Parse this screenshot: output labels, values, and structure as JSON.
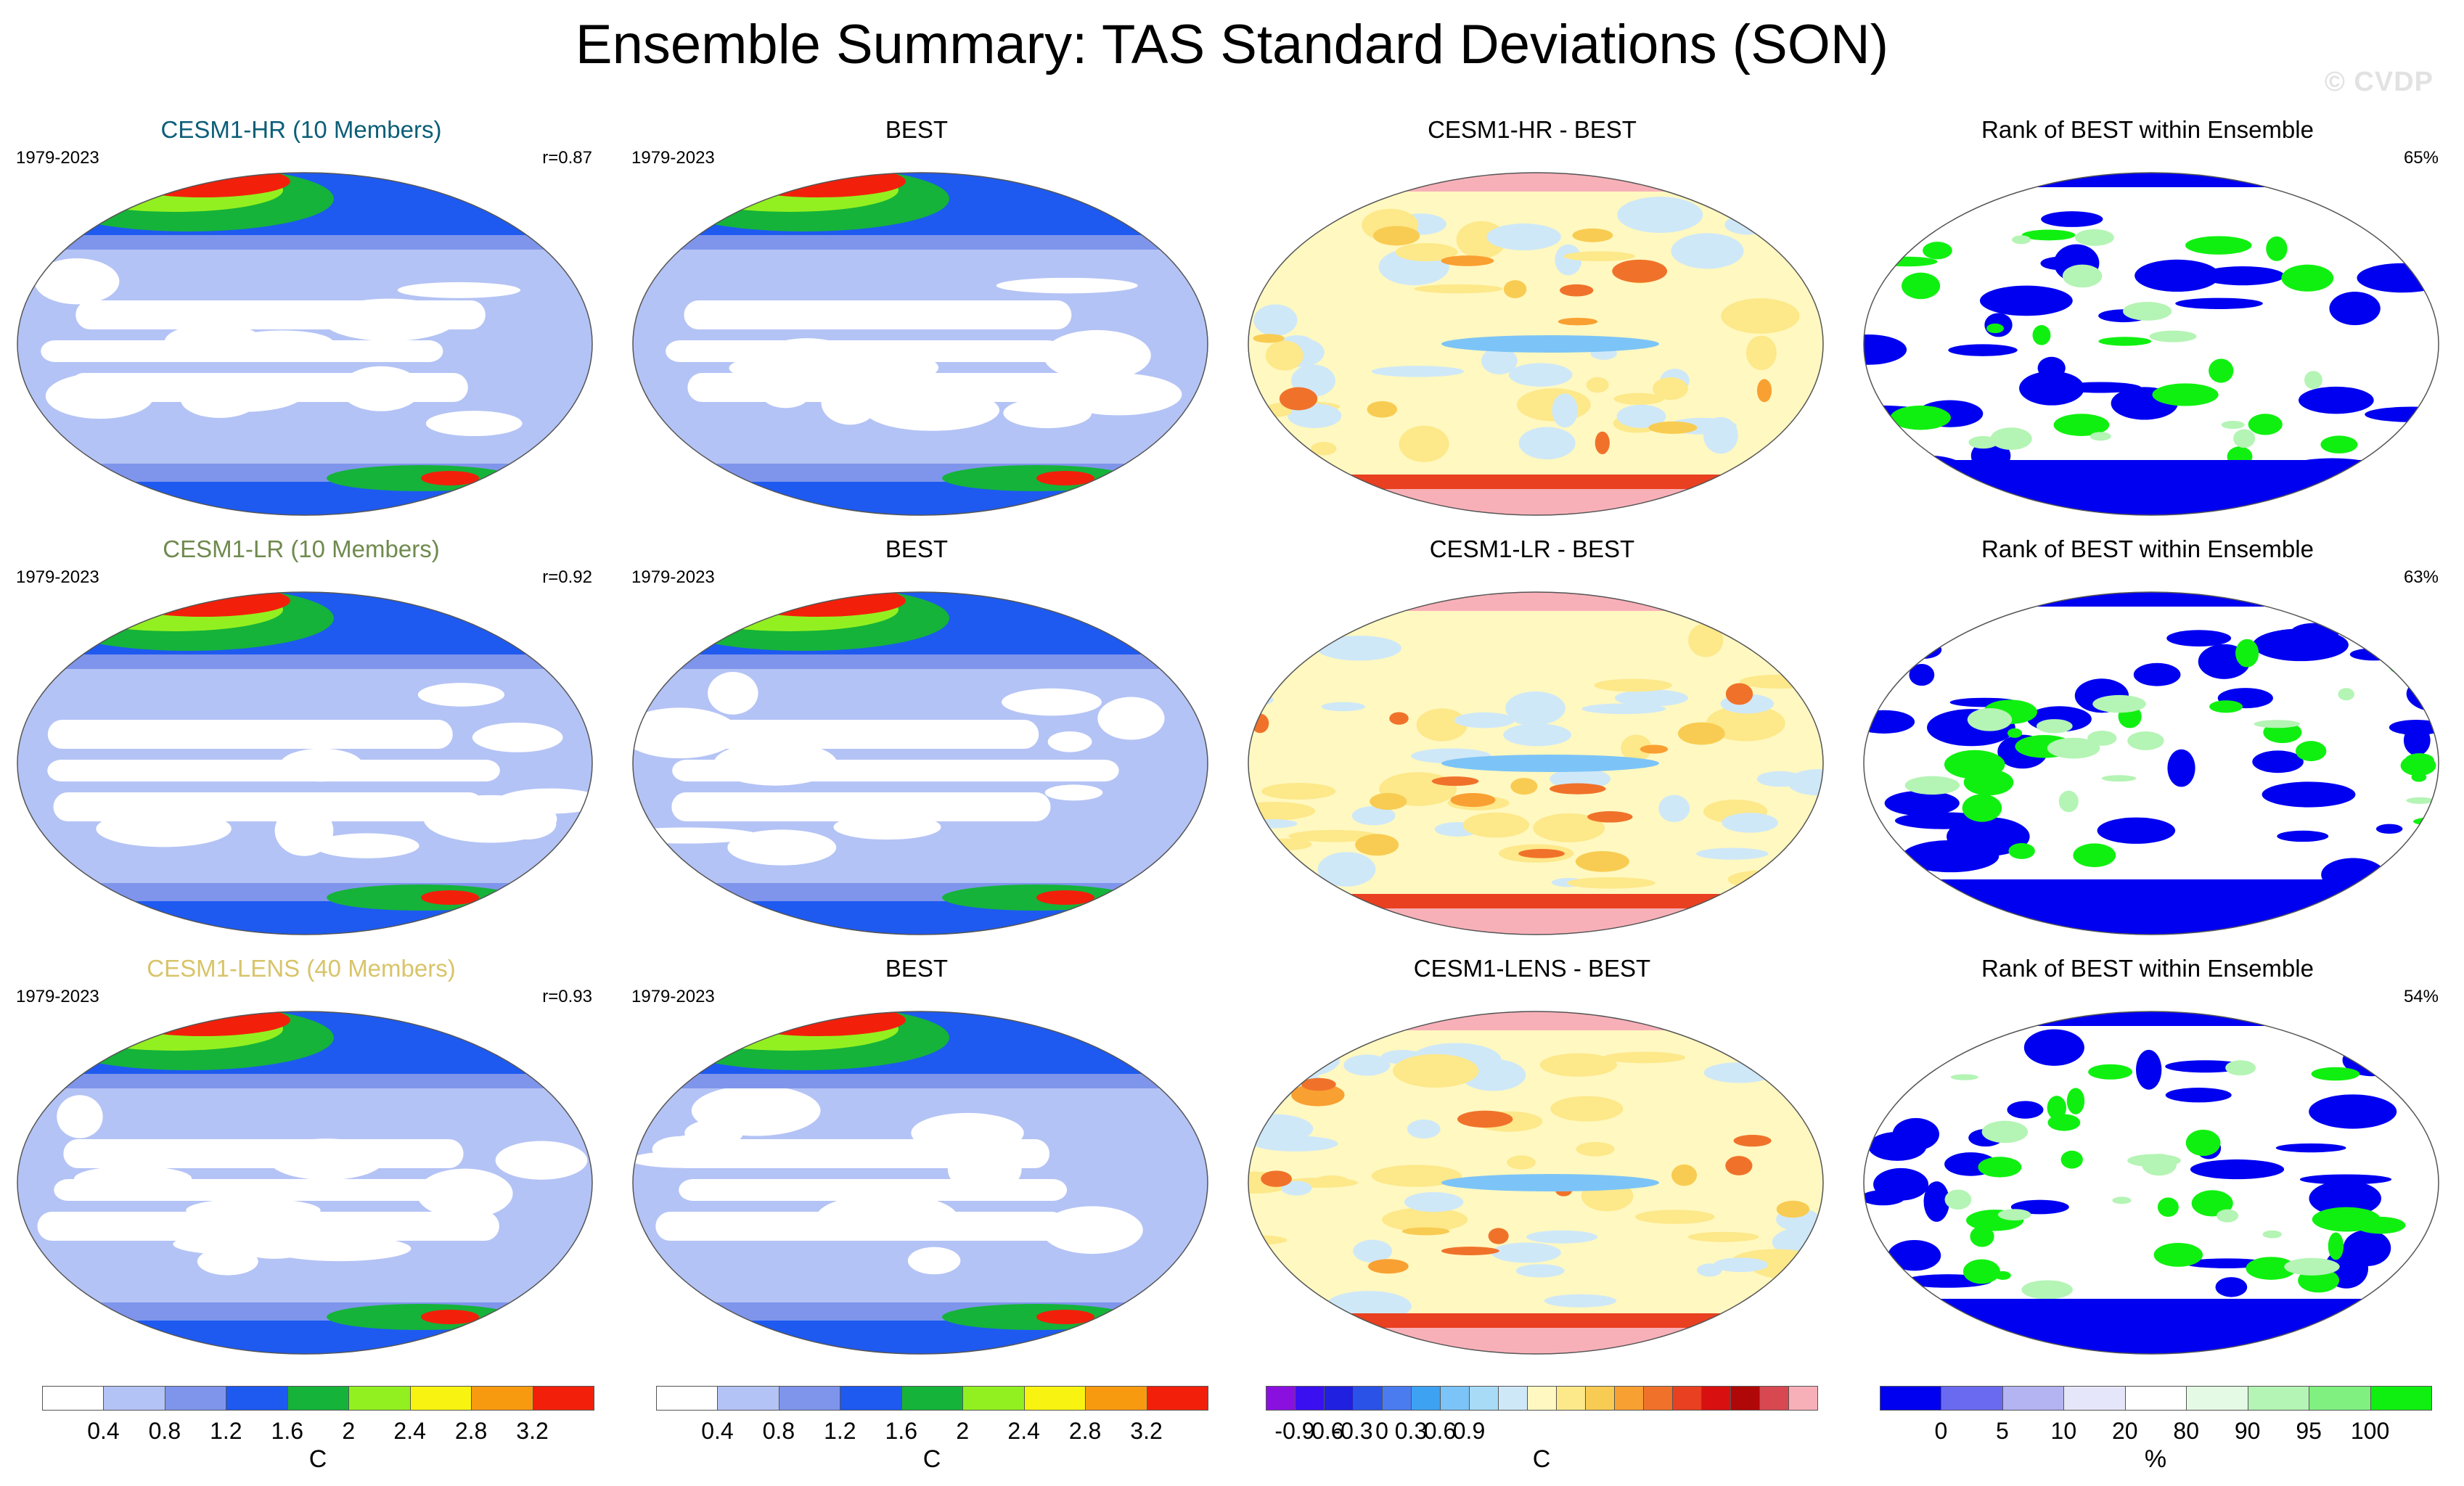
{
  "title": "Ensemble Summary: TAS Standard Deviations (SON)",
  "watermark": "© CVDP",
  "rows": [
    {
      "model": {
        "title": "CESM1-HR (10 Members)",
        "title_color": "#0b5e78",
        "period": "1979-2023",
        "stat": "r=0.87"
      },
      "obs": {
        "title": "BEST",
        "period": "1979-2023"
      },
      "diff": {
        "title": "CESM1-HR - BEST"
      },
      "rank": {
        "title": "Rank of BEST within Ensemble",
        "stat": "65%"
      }
    },
    {
      "model": {
        "title": "CESM1-LR (10 Members)",
        "title_color": "#6f8a4e",
        "period": "1979-2023",
        "stat": "r=0.92"
      },
      "obs": {
        "title": "BEST",
        "period": "1979-2023"
      },
      "diff": {
        "title": "CESM1-LR - BEST"
      },
      "rank": {
        "title": "Rank of BEST within Ensemble",
        "stat": "63%"
      }
    },
    {
      "model": {
        "title": "CESM1-LENS (40 Members)",
        "title_color": "#d8c46a",
        "period": "1979-2023",
        "stat": "r=0.93"
      },
      "obs": {
        "title": "BEST",
        "period": "1979-2023"
      },
      "diff": {
        "title": "CESM1-LENS - BEST"
      },
      "rank": {
        "title": "Rank of BEST within Ensemble",
        "stat": "54%"
      }
    }
  ],
  "colorbars": [
    {
      "unit": "C",
      "colors": [
        "#ffffff",
        "#b4c3f5",
        "#7f95eb",
        "#1e5af0",
        "#15b33a",
        "#93f020",
        "#f8f310",
        "#f89a10",
        "#f2200a"
      ],
      "labels": [
        "0.4",
        "0.8",
        "1.2",
        "1.6",
        "2",
        "2.4",
        "2.8",
        "3.2"
      ]
    },
    {
      "unit": "C",
      "colors": [
        "#ffffff",
        "#b4c3f5",
        "#7f95eb",
        "#1e5af0",
        "#15b33a",
        "#93f020",
        "#f8f310",
        "#f89a10",
        "#f2200a"
      ],
      "labels": [
        "0.4",
        "0.8",
        "1.2",
        "1.6",
        "2",
        "2.4",
        "2.8",
        "3.2"
      ]
    },
    {
      "unit": "C",
      "colors": [
        "#8a10e0",
        "#3a10f0",
        "#2020e0",
        "#2a52e6",
        "#4a7cf0",
        "#3ea2f2",
        "#7cc4f7",
        "#a8dcf6",
        "#cfe8f8",
        "#fff8c0",
        "#fde88a",
        "#f8cc52",
        "#f8a032",
        "#f0722a",
        "#e84020",
        "#d81010",
        "#b00808",
        "#d84850",
        "#f8b0b8"
      ],
      "labels": [
        "-0.9",
        "-0.6",
        "-0.3",
        "0",
        "0.3",
        "0.6",
        "0.9"
      ]
    },
    {
      "unit": "%",
      "colors": [
        "#0000f0",
        "#6a6af0",
        "#b4b4f2",
        "#e6e6fa",
        "#ffffff",
        "#e4fae4",
        "#b4f4b4",
        "#80f080",
        "#10f010"
      ],
      "labels": [
        "0",
        "5",
        "10",
        "20",
        "80",
        "90",
        "95",
        "100"
      ]
    }
  ],
  "chart_data": [
    {
      "type": "heatmap",
      "panel": "CESM1-HR TAS std dev (SON)",
      "row": 0,
      "palette": "seq",
      "ylim": [
        0,
        3.2
      ],
      "unit": "C",
      "pattern_corr": 0.87
    },
    {
      "type": "heatmap",
      "panel": "BEST TAS std dev (SON)",
      "row": 0,
      "palette": "seq",
      "ylim": [
        0,
        3.2
      ],
      "unit": "C"
    },
    {
      "type": "heatmap",
      "panel": "CESM1-HR - BEST",
      "row": 0,
      "palette": "div",
      "ylim": [
        -1.0,
        1.0
      ],
      "unit": "C"
    },
    {
      "type": "heatmap",
      "panel": "Rank of BEST within CESM1-HR ensemble",
      "row": 0,
      "palette": "rank",
      "ylim": [
        0,
        100
      ],
      "unit": "%",
      "percent_within_range": 65
    },
    {
      "type": "heatmap",
      "panel": "CESM1-LR TAS std dev (SON)",
      "row": 1,
      "palette": "seq",
      "ylim": [
        0,
        3.2
      ],
      "unit": "C",
      "pattern_corr": 0.92
    },
    {
      "type": "heatmap",
      "panel": "BEST TAS std dev (SON)",
      "row": 1,
      "palette": "seq",
      "ylim": [
        0,
        3.2
      ],
      "unit": "C"
    },
    {
      "type": "heatmap",
      "panel": "CESM1-LR - BEST",
      "row": 1,
      "palette": "div",
      "ylim": [
        -1.0,
        1.0
      ],
      "unit": "C"
    },
    {
      "type": "heatmap",
      "panel": "Rank of BEST within CESM1-LR ensemble",
      "row": 1,
      "palette": "rank",
      "ylim": [
        0,
        100
      ],
      "unit": "%",
      "percent_within_range": 63
    },
    {
      "type": "heatmap",
      "panel": "CESM1-LENS TAS std dev (SON)",
      "row": 2,
      "palette": "seq",
      "ylim": [
        0,
        3.2
      ],
      "unit": "C",
      "pattern_corr": 0.93
    },
    {
      "type": "heatmap",
      "panel": "BEST TAS std dev (SON)",
      "row": 2,
      "palette": "seq",
      "ylim": [
        0,
        3.2
      ],
      "unit": "C"
    },
    {
      "type": "heatmap",
      "panel": "CESM1-LENS - BEST",
      "row": 2,
      "palette": "div",
      "ylim": [
        -1.0,
        1.0
      ],
      "unit": "C"
    },
    {
      "type": "heatmap",
      "panel": "Rank of BEST within CESM1-LENS ensemble",
      "row": 2,
      "palette": "rank",
      "ylim": [
        0,
        100
      ],
      "unit": "%",
      "percent_within_range": 54
    }
  ]
}
